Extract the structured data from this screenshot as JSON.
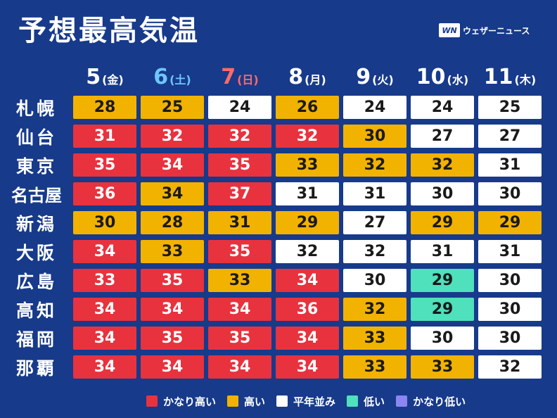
{
  "title": "予想最高気温",
  "logo": {
    "mark": "WN",
    "text": "ウェザーニュース"
  },
  "chart_data": {
    "type": "table",
    "title": "予想最高気温",
    "days": [
      {
        "num": "5",
        "weekday": "(金)",
        "kind": "weekday"
      },
      {
        "num": "6",
        "weekday": "(土)",
        "kind": "sat"
      },
      {
        "num": "7",
        "weekday": "(日)",
        "kind": "sun"
      },
      {
        "num": "8",
        "weekday": "(月)",
        "kind": "weekday"
      },
      {
        "num": "9",
        "weekday": "(火)",
        "kind": "weekday"
      },
      {
        "num": "10",
        "weekday": "(水)",
        "kind": "weekday"
      },
      {
        "num": "11",
        "weekday": "(木)",
        "kind": "weekday"
      }
    ],
    "rows": [
      {
        "city": "札幌",
        "values": [
          28,
          25,
          24,
          26,
          24,
          24,
          25
        ],
        "levels": [
          "high",
          "high",
          "normal",
          "high",
          "normal",
          "normal",
          "normal"
        ]
      },
      {
        "city": "仙台",
        "values": [
          31,
          32,
          32,
          32,
          30,
          27,
          27
        ],
        "levels": [
          "vhigh",
          "vhigh",
          "vhigh",
          "vhigh",
          "high",
          "normal",
          "normal"
        ]
      },
      {
        "city": "東京",
        "values": [
          35,
          34,
          35,
          33,
          32,
          32,
          31
        ],
        "levels": [
          "vhigh",
          "vhigh",
          "vhigh",
          "high",
          "high",
          "high",
          "normal"
        ]
      },
      {
        "city": "名古屋",
        "values": [
          36,
          34,
          37,
          31,
          31,
          30,
          30
        ],
        "levels": [
          "vhigh",
          "high",
          "vhigh",
          "normal",
          "normal",
          "normal",
          "normal"
        ]
      },
      {
        "city": "新潟",
        "values": [
          30,
          28,
          31,
          29,
          27,
          29,
          29
        ],
        "levels": [
          "high",
          "high",
          "high",
          "high",
          "normal",
          "high",
          "high"
        ]
      },
      {
        "city": "大阪",
        "values": [
          34,
          33,
          35,
          32,
          32,
          31,
          31
        ],
        "levels": [
          "vhigh",
          "high",
          "vhigh",
          "normal",
          "normal",
          "normal",
          "normal"
        ]
      },
      {
        "city": "広島",
        "values": [
          33,
          35,
          33,
          34,
          30,
          29,
          30
        ],
        "levels": [
          "vhigh",
          "vhigh",
          "high",
          "vhigh",
          "normal",
          "low",
          "normal"
        ]
      },
      {
        "city": "高知",
        "values": [
          34,
          34,
          34,
          36,
          32,
          29,
          30
        ],
        "levels": [
          "vhigh",
          "vhigh",
          "vhigh",
          "vhigh",
          "high",
          "low",
          "normal"
        ]
      },
      {
        "city": "福岡",
        "values": [
          34,
          35,
          35,
          34,
          33,
          30,
          30
        ],
        "levels": [
          "vhigh",
          "vhigh",
          "vhigh",
          "vhigh",
          "high",
          "normal",
          "normal"
        ]
      },
      {
        "city": "那覇",
        "values": [
          34,
          34,
          34,
          34,
          33,
          33,
          32
        ],
        "levels": [
          "vhigh",
          "vhigh",
          "vhigh",
          "vhigh",
          "high",
          "high",
          "normal"
        ]
      }
    ],
    "legend": [
      {
        "key": "vhigh",
        "label": "かなり高い",
        "color": "#e8323e"
      },
      {
        "key": "high",
        "label": "高い",
        "color": "#f2b200"
      },
      {
        "key": "normal",
        "label": "平年並み",
        "color": "#ffffff"
      },
      {
        "key": "low",
        "label": "低い",
        "color": "#4fe0bc"
      },
      {
        "key": "vlow",
        "label": "かなり低い",
        "color": "#8b86f0"
      }
    ]
  }
}
